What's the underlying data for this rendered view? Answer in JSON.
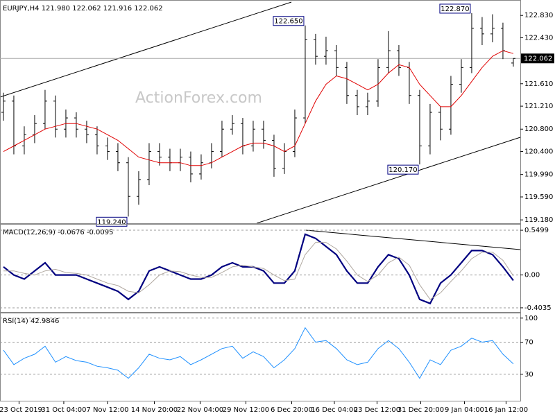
{
  "chart_data": [
    {
      "type": "ohlc",
      "title": "EURJPY,H4  121.980 122.062 121.916 122.062",
      "watermark": "ActionForex.com",
      "color": "#000000",
      "open": [
        121.1,
        121.3,
        120.5,
        120.7,
        120.9,
        121.3,
        120.8,
        121.0,
        120.8,
        120.7,
        120.5,
        120.4,
        120.2,
        119.6,
        119.9,
        120.4,
        120.3,
        120.2,
        120.3,
        120.0,
        120.2,
        120.4,
        120.8,
        120.9,
        120.5,
        120.8,
        120.6,
        120.1,
        120.4,
        121.0,
        122.4,
        122.1,
        122.2,
        121.9,
        121.4,
        121.2,
        121.3,
        121.9,
        122.2,
        121.9,
        121.4,
        120.5,
        121.1,
        120.8,
        121.6,
        121.9,
        122.6,
        122.5,
        122.6,
        121.98
      ],
      "high": [
        121.45,
        121.4,
        120.85,
        121.05,
        121.5,
        121.4,
        121.15,
        121.1,
        120.95,
        120.85,
        120.65,
        120.55,
        120.3,
        120.05,
        120.55,
        120.55,
        120.45,
        120.45,
        120.4,
        120.35,
        120.55,
        120.95,
        121.05,
        121.0,
        120.95,
        120.95,
        120.7,
        120.55,
        121.15,
        122.65,
        122.5,
        122.45,
        122.3,
        122.0,
        121.5,
        121.45,
        122.05,
        122.55,
        122.3,
        122.0,
        121.5,
        121.25,
        121.2,
        121.75,
        122.05,
        122.87,
        122.8,
        122.85,
        122.7,
        122.062
      ],
      "low": [
        120.95,
        120.35,
        120.35,
        120.55,
        120.8,
        120.65,
        120.65,
        120.65,
        120.55,
        120.35,
        120.25,
        120.05,
        119.24,
        119.45,
        119.8,
        120.15,
        120.05,
        120.05,
        119.85,
        119.9,
        120.1,
        120.3,
        120.7,
        120.35,
        120.4,
        120.45,
        119.95,
        120.0,
        120.3,
        120.9,
        121.95,
        121.95,
        121.75,
        121.25,
        121.05,
        121.05,
        121.2,
        121.8,
        121.75,
        121.25,
        120.17,
        120.35,
        120.6,
        120.7,
        121.45,
        121.8,
        122.3,
        122.35,
        122.05,
        121.916
      ],
      "close": [
        121.3,
        120.5,
        120.7,
        120.9,
        121.3,
        120.8,
        121.0,
        120.8,
        120.7,
        120.5,
        120.4,
        120.2,
        119.6,
        119.9,
        120.4,
        120.3,
        120.2,
        120.3,
        120.0,
        120.2,
        120.4,
        120.8,
        120.9,
        120.5,
        120.8,
        120.6,
        120.1,
        120.4,
        121.0,
        122.4,
        122.1,
        122.2,
        121.9,
        121.4,
        121.2,
        121.3,
        121.9,
        122.2,
        121.9,
        121.4,
        120.5,
        121.1,
        120.8,
        121.6,
        121.9,
        122.6,
        122.5,
        122.6,
        122.2,
        122.062
      ],
      "overlay": {
        "color": "#e00000",
        "values": [
          120.4,
          120.5,
          120.6,
          120.7,
          120.8,
          120.85,
          120.9,
          120.9,
          120.85,
          120.8,
          120.7,
          120.6,
          120.45,
          120.3,
          120.25,
          120.2,
          120.2,
          120.2,
          120.15,
          120.15,
          120.2,
          120.3,
          120.4,
          120.5,
          120.55,
          120.55,
          120.5,
          120.4,
          120.5,
          120.9,
          121.3,
          121.6,
          121.75,
          121.7,
          121.6,
          121.5,
          121.6,
          121.8,
          121.95,
          121.9,
          121.6,
          121.4,
          121.2,
          121.2,
          121.4,
          121.65,
          121.9,
          122.1,
          122.2,
          122.15
        ]
      },
      "current_price": {
        "value": 122.062,
        "label": "122.062"
      },
      "annotations": [
        {
          "value": 122.65,
          "label": "122.650"
        },
        {
          "value": 122.87,
          "label": "122.870"
        },
        {
          "value": 120.17,
          "label": "120.170"
        },
        {
          "value": 119.24,
          "label": "119.240"
        }
      ],
      "xlim": [
        -0.33,
        49.67
      ],
      "ylim": [
        119.12,
        123.08
      ],
      "yticks": [
        {
          "value": 122.83,
          "label": "122.830"
        },
        {
          "value": 122.43,
          "label": "122.430"
        },
        {
          "value": 121.61,
          "label": "121.610"
        },
        {
          "value": 121.21,
          "label": "121.210"
        },
        {
          "value": 120.8,
          "label": "120.800"
        },
        {
          "value": 120.4,
          "label": "120.400"
        },
        {
          "value": 119.99,
          "label": "119.990"
        },
        {
          "value": 119.59,
          "label": "119.590"
        },
        {
          "value": 119.18,
          "label": "119.180"
        }
      ]
    },
    {
      "type": "macd",
      "title": "MACD(12,26,9) -0.0676 -0.0095",
      "series": [
        {
          "color": "#000080",
          "values": [
            0.1,
            0.0,
            -0.05,
            0.05,
            0.15,
            0.0,
            0.0,
            0.0,
            -0.05,
            -0.1,
            -0.15,
            -0.2,
            -0.3,
            -0.2,
            0.05,
            0.1,
            0.05,
            0.0,
            -0.05,
            -0.05,
            0.0,
            0.1,
            0.15,
            0.1,
            0.1,
            0.05,
            -0.1,
            -0.1,
            0.05,
            0.5,
            0.45,
            0.35,
            0.25,
            0.05,
            -0.1,
            -0.1,
            0.1,
            0.25,
            0.2,
            0.0,
            -0.3,
            -0.35,
            -0.1,
            0.0,
            0.15,
            0.3,
            0.3,
            0.25,
            0.1,
            -0.0676
          ]
        },
        {
          "color": "#b0a8a0",
          "values": [
            0.05,
            0.05,
            0.02,
            0.0,
            0.05,
            0.07,
            0.03,
            0.02,
            0.0,
            -0.05,
            -0.1,
            -0.13,
            -0.2,
            -0.22,
            -0.12,
            0.0,
            0.05,
            0.04,
            0.0,
            -0.03,
            -0.03,
            0.03,
            0.1,
            0.12,
            0.1,
            0.08,
            0.0,
            -0.07,
            -0.05,
            0.25,
            0.4,
            0.4,
            0.32,
            0.17,
            0.0,
            -0.08,
            0.0,
            0.15,
            0.22,
            0.12,
            -0.12,
            -0.3,
            -0.22,
            -0.08,
            0.05,
            0.2,
            0.28,
            0.28,
            0.18,
            -0.0095
          ]
        }
      ],
      "xlim": [
        -0.33,
        49.67
      ],
      "ylim": [
        -0.455,
        0.61
      ],
      "yticks": [
        0.5499,
        {
          "value": 0,
          "label": "0.00"
        },
        -0.4035
      ]
    },
    {
      "type": "line",
      "title": "RSI(14) 42.9846",
      "color": "#1e90ff",
      "values": [
        60,
        42,
        50,
        55,
        65,
        45,
        52,
        47,
        45,
        40,
        38,
        35,
        25,
        38,
        55,
        50,
        48,
        52,
        42,
        48,
        55,
        62,
        65,
        50,
        58,
        52,
        38,
        48,
        62,
        88,
        70,
        72,
        62,
        48,
        42,
        45,
        62,
        72,
        62,
        45,
        25,
        48,
        42,
        60,
        65,
        75,
        70,
        72,
        55,
        42.9846
      ],
      "xlim": [
        -0.33,
        49.67
      ],
      "ylim": [
        -3,
        105
      ],
      "yticks": [
        100,
        70,
        30
      ],
      "xticks": [
        {
          "value": 1.5,
          "label": "23 Oct 2019"
        },
        {
          "value": 5.8,
          "label": "31 Oct 04:00"
        },
        {
          "value": 10,
          "label": "7 Nov 12:00"
        },
        {
          "value": 14.5,
          "label": "14 Nov 20:00"
        },
        {
          "value": 18.9,
          "label": "22 Nov 04:00"
        },
        {
          "value": 23.3,
          "label": "29 Nov 12:00"
        },
        {
          "value": 27.7,
          "label": "6 Dec 20:00"
        },
        {
          "value": 31.8,
          "label": "16 Dec 04:00"
        },
        {
          "value": 35.9,
          "label": "23 Dec 12:00"
        },
        {
          "value": 40.1,
          "label": "31 Dec 20:00"
        },
        {
          "value": 44.3,
          "label": "9 Jan 04:00"
        },
        {
          "value": 48.3,
          "label": "16 Jan 12:00"
        }
      ]
    }
  ]
}
